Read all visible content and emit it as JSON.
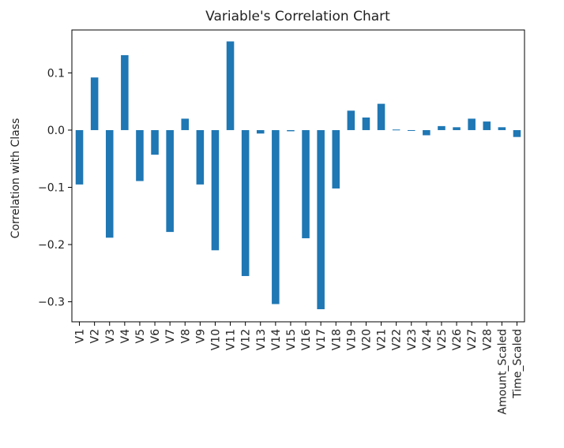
{
  "chart_data": {
    "type": "bar",
    "title": "Variable's Correlation Chart",
    "xlabel": "",
    "ylabel": "Correlation with Class",
    "ylim": [
      -0.335,
      0.175
    ],
    "yticks": [
      -0.3,
      -0.2,
      -0.1,
      0.0,
      0.1
    ],
    "ytick_labels": [
      "−0.3",
      "−0.2",
      "−0.1",
      "0.0",
      "0.1"
    ],
    "grid": false,
    "legend": "none",
    "bar_color": "#1f77b4",
    "categories": [
      "V1",
      "V2",
      "V3",
      "V4",
      "V5",
      "V6",
      "V7",
      "V8",
      "V9",
      "V10",
      "V11",
      "V12",
      "V13",
      "V14",
      "V15",
      "V16",
      "V17",
      "V18",
      "V19",
      "V20",
      "V21",
      "V22",
      "V23",
      "V24",
      "V25",
      "V26",
      "V27",
      "V28",
      "Amount_Scaled",
      "Time_Scaled"
    ],
    "values": [
      -0.095,
      0.092,
      -0.188,
      0.131,
      -0.089,
      -0.043,
      -0.178,
      0.02,
      -0.095,
      -0.21,
      0.155,
      -0.255,
      -0.006,
      -0.304,
      -0.002,
      -0.189,
      -0.313,
      -0.102,
      0.034,
      0.022,
      0.046,
      0.001,
      0.0,
      -0.009,
      0.007,
      0.005,
      0.02,
      0.015,
      0.005,
      -0.012
    ]
  }
}
